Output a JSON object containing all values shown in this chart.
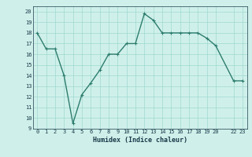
{
  "x": [
    0,
    1,
    2,
    3,
    4,
    5,
    6,
    7,
    8,
    9,
    10,
    11,
    12,
    13,
    14,
    15,
    16,
    17,
    18,
    19,
    20,
    22,
    23
  ],
  "y": [
    18,
    16.5,
    16.5,
    14,
    9.5,
    12.2,
    13.3,
    14.5,
    16,
    16,
    17,
    17,
    19.8,
    19.2,
    18,
    18,
    18,
    18,
    18,
    17.5,
    16.8,
    13.5,
    13.5
  ],
  "line_color": "#2e7d6e",
  "marker": "+",
  "marker_size": 3,
  "bg_color": "#cff0ea",
  "grid_color": "#9fd8d0",
  "xlabel": "Humidex (Indice chaleur)",
  "xlim": [
    -0.5,
    23.5
  ],
  "ylim": [
    9,
    20.5
  ],
  "yticks": [
    9,
    10,
    11,
    12,
    13,
    14,
    15,
    16,
    17,
    18,
    19,
    20
  ],
  "xticks": [
    0,
    1,
    2,
    3,
    4,
    5,
    6,
    7,
    8,
    9,
    10,
    11,
    12,
    13,
    14,
    15,
    16,
    17,
    18,
    19,
    20,
    22,
    23
  ],
  "xtick_labels": [
    "0",
    "1",
    "2",
    "3",
    "4",
    "5",
    "6",
    "7",
    "8",
    "9",
    "10",
    "11",
    "12",
    "13",
    "14",
    "15",
    "16",
    "17",
    "18",
    "19",
    "20",
    "22",
    "23"
  ],
  "font_color": "#1a3a4a",
  "linewidth": 1.0,
  "xlabel_fontsize": 6.0,
  "tick_fontsize": 5.0
}
